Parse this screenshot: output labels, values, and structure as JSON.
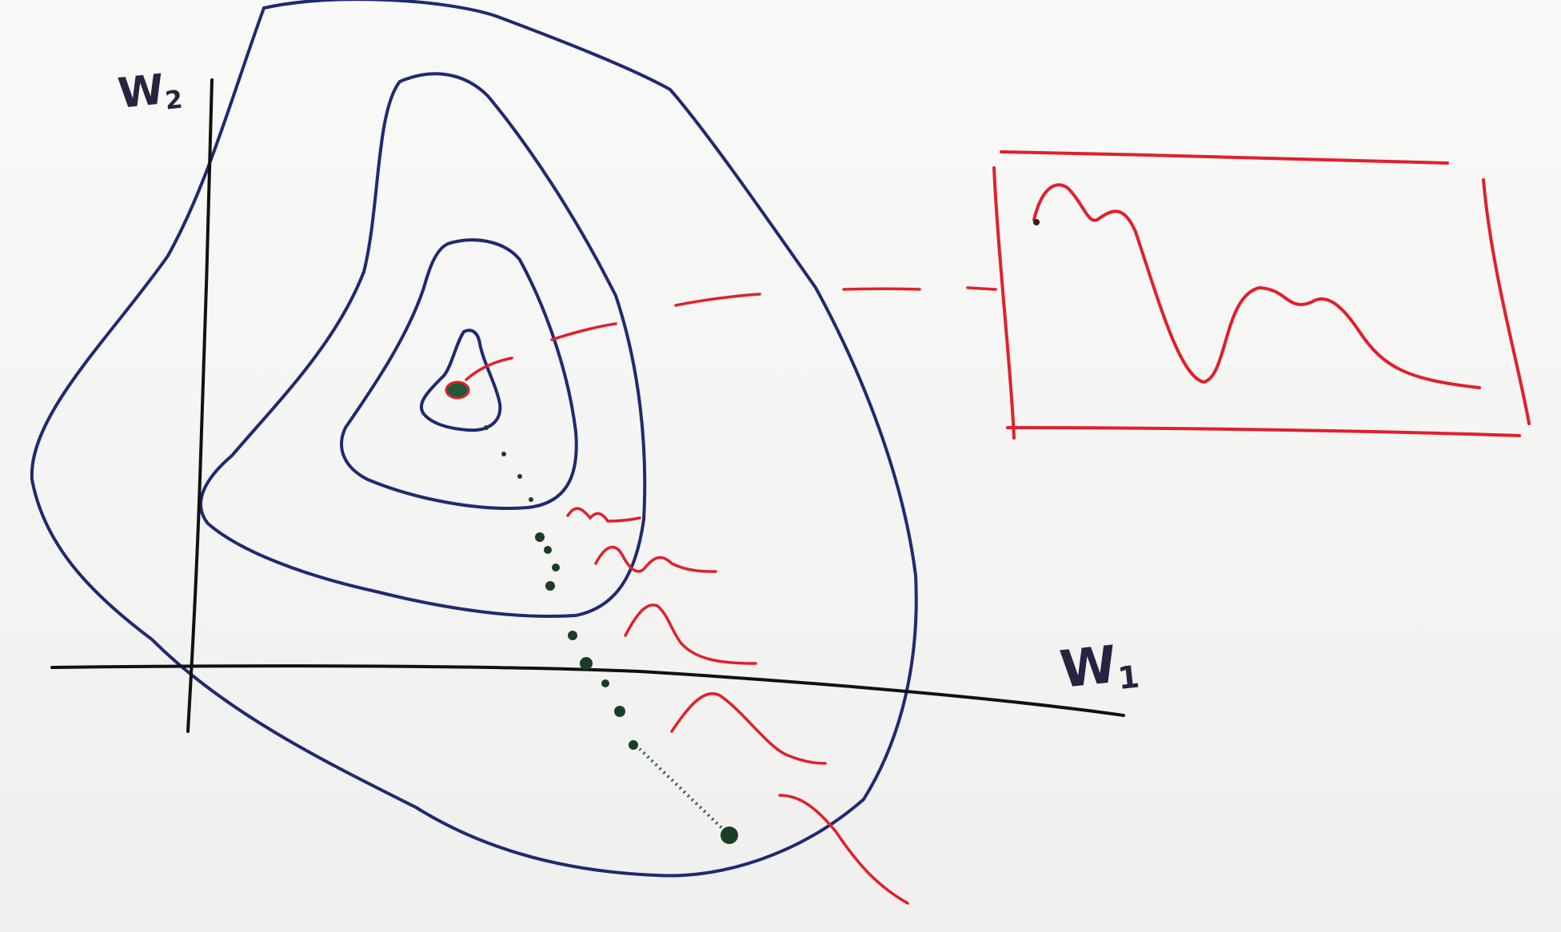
{
  "axes": {
    "y_label": "W",
    "y_label_sub": "2",
    "x_label": "W",
    "x_label_sub": "1"
  },
  "colors": {
    "contour": "#1f2a70",
    "axis": "#111111",
    "path": "#1e5a3a",
    "curve": "#e0202c"
  },
  "diagram": {
    "contour_levels": 4,
    "descent_path_dots": 14,
    "loss_snapshots": 5,
    "inset_panel": "loss-curve"
  }
}
